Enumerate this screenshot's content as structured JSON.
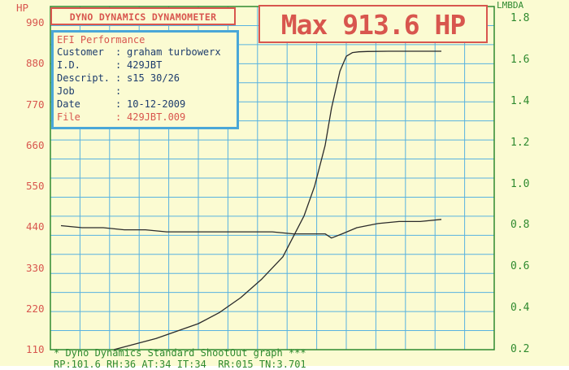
{
  "header": {
    "title": "DYNO DYNAMICS DYNAMOMETER",
    "max_label": "Max 913.6 HP"
  },
  "info": {
    "title": "EFI Performance",
    "rows": [
      {
        "key": "Customer",
        "value": "graham turbowerx"
      },
      {
        "key": "I.D.",
        "value": "429JBT"
      },
      {
        "key": "Descript.",
        "value": "s15 30/26"
      },
      {
        "key": "Job",
        "value": ""
      },
      {
        "key": "Date",
        "value": "10-12-2009"
      },
      {
        "key": "File",
        "value": "429JBT.009"
      }
    ]
  },
  "footer": {
    "line1": "* Dyno Dynamics Standard ShootOut graph ***",
    "line2": "RP:101.6 RH:36 AT:34 IT:34  RR:015 TN:3.701"
  },
  "colors": {
    "red": "#d8564e",
    "green": "#2f8a2f",
    "blue": "#4aa7d8",
    "grid": "#58b2e0",
    "paper": "#fbfbd2",
    "ink": "#2b2b2b"
  },
  "chart_data": {
    "type": "line",
    "left_axis": {
      "label": "HP",
      "ticks": [
        110,
        220,
        330,
        440,
        550,
        660,
        770,
        880,
        990
      ],
      "range": [
        110,
        1034
      ]
    },
    "right_axis": {
      "label": "LMBDA",
      "ticks": [
        0.2,
        0.4,
        0.6,
        0.8,
        1.0,
        1.2,
        1.4,
        1.6,
        1.8
      ],
      "range": [
        0.2,
        1.86
      ]
    },
    "grid": true,
    "x_grid_lines": 15,
    "series": [
      {
        "axis": "left",
        "x": [
          0,
          2,
          4,
          5,
          6,
          7,
          8,
          9,
          9.5,
          10,
          10.3,
          10.7,
          11,
          11.3,
          11.6,
          12,
          13,
          14,
          15.5
        ],
        "values": [
          110,
          140,
          180,
          210,
          250,
          300,
          360,
          470,
          550,
          660,
          760,
          860,
          900,
          910,
          912,
          913,
          913.5,
          913.6,
          913.6
        ]
      },
      {
        "axis": "right",
        "x": [
          -2.5,
          -1.5,
          -0.5,
          0.5,
          1.5,
          2.5,
          3.5,
          4.5,
          5.5,
          6.5,
          7.5,
          8.5,
          9.5,
          10,
          10.3,
          10.8,
          11.5,
          12.5,
          13.5,
          14.5,
          15.5
        ],
        "values": [
          0.8,
          0.79,
          0.79,
          0.78,
          0.78,
          0.77,
          0.77,
          0.77,
          0.77,
          0.77,
          0.77,
          0.76,
          0.76,
          0.76,
          0.74,
          0.76,
          0.79,
          0.81,
          0.82,
          0.82,
          0.83
        ]
      }
    ],
    "x_range": [
      -3,
      18
    ]
  }
}
